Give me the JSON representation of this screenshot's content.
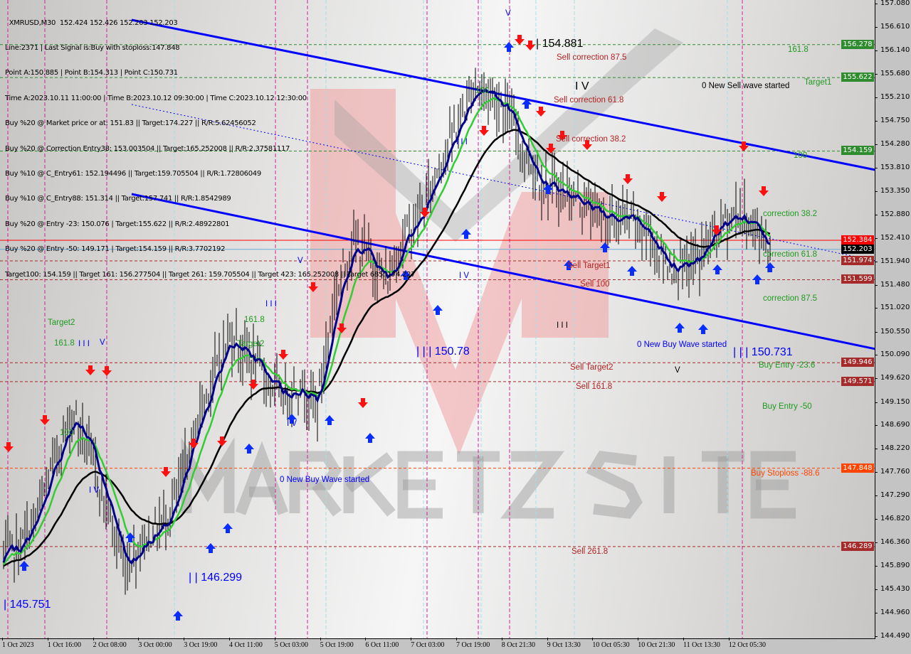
{
  "header": {
    "lines": [
      "  XMRUSD,M30  152.424 152.426 152.203 152.203",
      "Line:2371 | Last Signal is:Buy with stoploss:147.848",
      "Point A:150.885 | Point B:154.313 | Point C:150.731",
      "Time A:2023.10.11 11:00:00 | Time B:2023.10.12 09:30:00 | Time C:2023.10.12 12:30:00",
      "Buy %20 @ Market price or at: 151.83 || Target:174.227 || R/R:5.62456052",
      "Buy %20 @ Correction Entry38: 153.003504 || Target:165.252008 || R/R:2.37581117",
      "Buy %10 @ C_Entry61: 152.194496 || Target:159.705504 || R/R:1.72806049",
      "Buy %10 @ C_Entry88: 151.314 || Target:157.741 || R/R:1.8542989",
      "Buy %20 @ Entry -23: 150.076 | Target:155.622 || R/R:2.48922801",
      "Buy %20 @ Entry -50: 149.171 | Target:154.159 || R/R:3.7702192",
      "Target100: 154.159 || Target 161: 156.277504 || Target 261: 159.705504 || Target 423: 165.252008 || Target 685: 174.227"
    ]
  },
  "watermark": "MARKETZ SITE",
  "chart_data": {
    "type": "bar",
    "symbol": "XMRUSD",
    "timeframe": "M30",
    "ohlc_last": {
      "open": 152.424,
      "high": 152.426,
      "low": 152.203,
      "close": 152.203
    },
    "ylim": [
      144.49,
      157.08
    ],
    "y_ticks": [
      "157.080",
      "156.610",
      "156.140",
      "155.680",
      "155.210",
      "154.750",
      "154.280",
      "153.810",
      "153.350",
      "152.880",
      "152.410",
      "151.940",
      "151.480",
      "151.020",
      "150.550",
      "150.090",
      "149.620",
      "149.150",
      "148.690",
      "148.220",
      "147.760",
      "147.290",
      "146.820",
      "146.360",
      "145.890",
      "145.430",
      "144.960",
      "144.490"
    ],
    "x_ticks": [
      "1 Oct 2023",
      "1 Oct 16:00",
      "2 Oct 08:00",
      "3 Oct 00:00",
      "3 Oct 19:00",
      "4 Oct 11:00",
      "5 Oct 03:00",
      "5 Oct 19:00",
      "6 Oct 11:00",
      "7 Oct 03:00",
      "7 Oct 19:00",
      "8 Oct 21:30",
      "9 Oct 13:30",
      "10 Oct 05:30",
      "10 Oct 21:30",
      "11 Oct 13:30",
      "12 Oct 05:30"
    ],
    "grid": false,
    "approx_close": [
      146.14,
      146.28,
      146.98,
      148.11,
      148.96,
      148.11,
      146.98,
      145.85,
      146.42,
      146.7,
      147.27,
      148.68,
      149.67,
      150.52,
      150.09,
      149.67,
      149.25,
      149.53,
      149.11,
      151.23,
      152.36,
      152.07,
      151.51,
      152.5,
      152.92,
      153.91,
      154.62,
      155.47,
      155.33,
      154.9,
      154.05,
      153.49,
      153.35,
      153.21,
      152.92,
      152.78,
      152.78,
      152.5,
      151.93,
      151.79,
      152.07,
      152.64,
      152.92,
      152.7,
      152.203
    ],
    "price_levels": [
      {
        "value": "156.278",
        "color": "#2e8b2e"
      },
      {
        "value": "155.622",
        "color": "#2e8b2e"
      },
      {
        "value": "154.159",
        "color": "#2e8b2e"
      },
      {
        "value": "152.384",
        "color": "#ff0000"
      },
      {
        "value": "152.203",
        "color": "#000000"
      },
      {
        "value": "151.974",
        "color": "#a52a2a"
      },
      {
        "value": "151.599",
        "color": "#a52a2a"
      },
      {
        "value": "149.946",
        "color": "#a52a2a"
      },
      {
        "value": "149.571",
        "color": "#a52a2a"
      },
      {
        "value": "147.848",
        "color": "#ff4500"
      },
      {
        "value": "146.289",
        "color": "#a52a2a"
      }
    ],
    "annotations": [
      "| 154.881",
      "Sell correction 87.5",
      "Sell correction 61.8",
      "Sell correction 38.2",
      "I V",
      "0 New Sell wave started",
      "161.8",
      "Target1",
      "100",
      "correction 38.2",
      "correction 61.8",
      "correction 87.5",
      "Sell Target1",
      "Sell 100",
      "I I I",
      "0 New Buy Wave started",
      "| | | 150.731",
      "Buy Entry -23.6",
      "V",
      "Sell Target2",
      "Sell 161.8",
      "Buy Entry -50",
      "Buy Stoploss -88.6",
      "Sell  261.8",
      "V",
      "100",
      "I I I",
      "I V",
      "| | | 150.78",
      "I I I",
      "161.8",
      "Target2",
      "V",
      "I V",
      "0 New Buy Wave started",
      "Target2",
      "161.8",
      "I I I",
      "V",
      "100",
      "I V",
      "| | 146.299",
      "| 145.751"
    ]
  }
}
